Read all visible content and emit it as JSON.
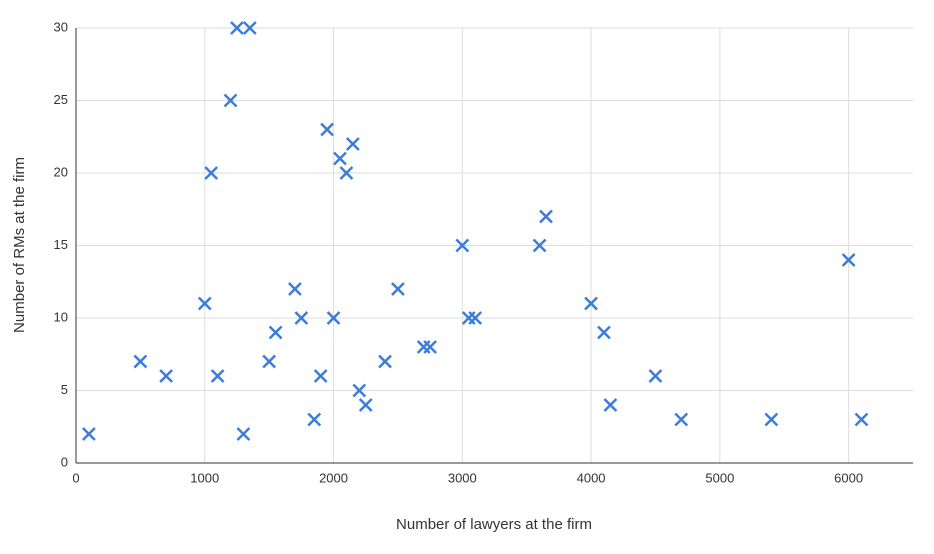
{
  "chart_data": {
    "type": "scatter",
    "x_label": "Number of lawyers at the firm",
    "y_label": "Number of RMs at the firm",
    "color": "#3b7dd8",
    "x": [
      100,
      500,
      700,
      1000,
      1050,
      1100,
      1200,
      1250,
      1350,
      1300,
      1500,
      1550,
      1700,
      1750,
      1850,
      1900,
      1950,
      2000,
      2050,
      2100,
      2150,
      2200,
      2250,
      2400,
      2500,
      2700,
      2750,
      3000,
      3050,
      3100,
      3600,
      3650,
      4000,
      4100,
      4150,
      4500,
      4700,
      5400,
      6000,
      6100
    ],
    "values": [
      2,
      7,
      6,
      11,
      20,
      6,
      25,
      30,
      30,
      2,
      7,
      9,
      12,
      10,
      3,
      6,
      23,
      10,
      21,
      20,
      22,
      5,
      4,
      7,
      12,
      8,
      8,
      15,
      10,
      10,
      15,
      17,
      11,
      9,
      4,
      6,
      3,
      3,
      14,
      3
    ],
    "xlim": [
      0,
      6500
    ],
    "xticks": [
      0,
      1000,
      2000,
      3000,
      4000,
      5000,
      6000
    ],
    "ylim": [
      0,
      30
    ],
    "yticks": [
      0,
      5,
      10,
      15,
      20,
      25,
      30
    ],
    "grid": true
  }
}
